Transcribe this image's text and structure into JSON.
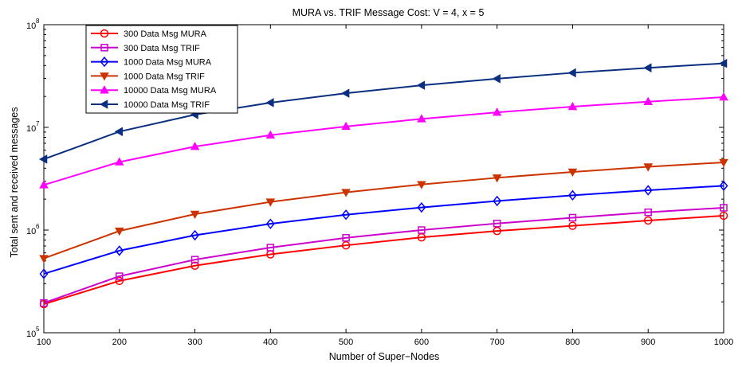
{
  "chart_data": {
    "type": "line",
    "title": "MURA vs. TRIF Message Cost: V = 4, x = 5",
    "xlabel": "Number of Super−Nodes",
    "ylabel": "Total sent and received messages",
    "x": [
      100,
      200,
      300,
      400,
      500,
      600,
      700,
      800,
      900,
      1000
    ],
    "xlim": [
      100,
      1000
    ],
    "x_ticks": [
      "100",
      "200",
      "300",
      "400",
      "500",
      "600",
      "700",
      "800",
      "900",
      "1000"
    ],
    "ylim": [
      100000,
      100000000
    ],
    "y_scale": "log",
    "y_ticks": [
      {
        "base": "10",
        "exp": "5"
      },
      {
        "base": "10",
        "exp": "6"
      },
      {
        "base": "10",
        "exp": "7"
      },
      {
        "base": "10",
        "exp": "8"
      }
    ],
    "grid": false,
    "legend_position": "top-left",
    "series": [
      {
        "name": "300 Data Msg MURA",
        "color": "#ff0000",
        "marker": "circle",
        "values": [
          190000,
          320000,
          450000,
          580000,
          710000,
          850000,
          980000,
          1100000,
          1240000,
          1380000
        ]
      },
      {
        "name": "300 Data Msg TRIF",
        "color": "#cc00cc",
        "marker": "square",
        "values": [
          195000,
          355000,
          515000,
          675000,
          840000,
          1000000,
          1160000,
          1320000,
          1490000,
          1650000
        ]
      },
      {
        "name": "1000 Data Msg MURA",
        "color": "#0000ff",
        "marker": "diamond",
        "values": [
          375000,
          630000,
          890000,
          1150000,
          1410000,
          1660000,
          1920000,
          2180000,
          2440000,
          2700000
        ]
      },
      {
        "name": "1000 Data Msg TRIF",
        "color": "#cc3300",
        "marker": "triangle-down",
        "values": [
          530000,
          980000,
          1430000,
          1880000,
          2330000,
          2780000,
          3230000,
          3680000,
          4130000,
          4560000
        ]
      },
      {
        "name": "10000 Data Msg MURA",
        "color": "#ff00ff",
        "marker": "triangle-up",
        "values": [
          2750000,
          4600000,
          6500000,
          8400000,
          10200000,
          12100000,
          14000000,
          15900000,
          17800000,
          19700000
        ]
      },
      {
        "name": "10000 Data Msg TRIF",
        "color": "#0a2f80",
        "marker": "triangle-left",
        "values": [
          4900000,
          9100000,
          13300000,
          17400000,
          21500000,
          25700000,
          29800000,
          34000000,
          38000000,
          42000000
        ]
      }
    ]
  }
}
